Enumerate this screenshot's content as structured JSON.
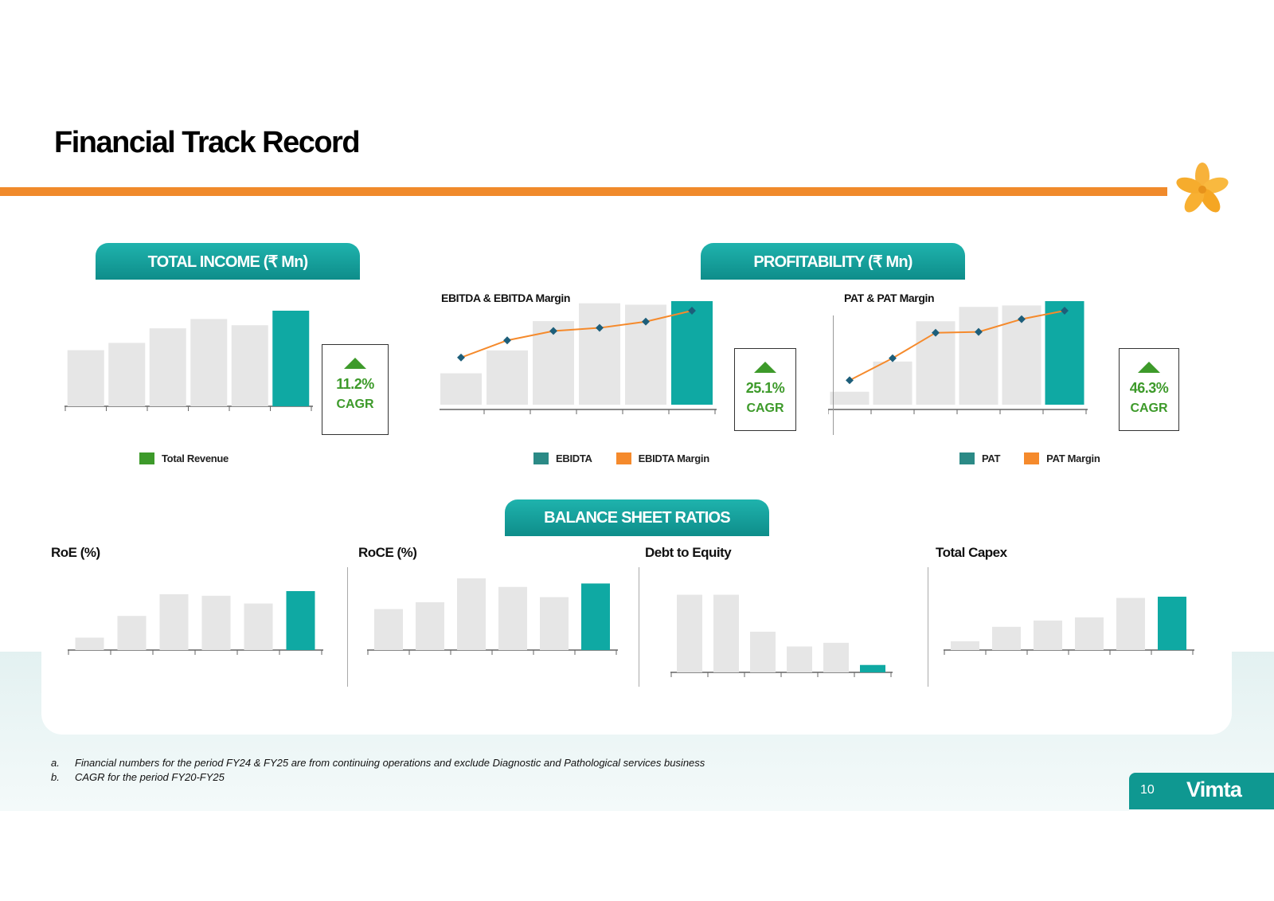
{
  "page": {
    "title": "Financial Track Record",
    "page_number": "10",
    "brand": "Vimta",
    "colors": {
      "accent": "#f08a2b",
      "teal": "#0fa9a3",
      "grey_bar": "#e6e6e6",
      "cagr_green": "#3d9a2a"
    }
  },
  "sections": {
    "total_income": "TOTAL INCOME (₹ Mn)",
    "profitability": "PROFITABILITY (₹ Mn)",
    "balance_sheet": "BALANCE SHEET RATIOS",
    "ebitda_title": "EBITDA & EBITDA Margin",
    "pat_title": "PAT & PAT Margin",
    "roe_title": "RoE (%)",
    "roce_title": "RoCE (%)",
    "de_title": "Debt to Equity",
    "capex_title": "Total Capex"
  },
  "cagr": {
    "total_income": {
      "value": "11.2%",
      "label": "CAGR"
    },
    "ebitda": {
      "value": "25.1%",
      "label": "CAGR"
    },
    "pat": {
      "value": "46.3%",
      "label": "CAGR"
    }
  },
  "legends": {
    "total_revenue": "Total Revenue",
    "ebitda": "EBIDTA",
    "ebitda_margin": "EBIDTA Margin",
    "pat": "PAT",
    "pat_margin": "PAT Margin"
  },
  "footnotes": [
    {
      "key": "a.",
      "text": "Financial numbers for the period FY24 & FY25 are from continuing operations and exclude Diagnostic and Pathological services business"
    },
    {
      "key": "b.",
      "text": "CAGR for the period FY20-FY25"
    }
  ],
  "chart_data": [
    {
      "id": "total-income",
      "type": "bar",
      "categories": [
        "",
        "",
        "",
        "",
        "",
        ""
      ],
      "series": [
        {
          "name": "Total Revenue",
          "values": [
            2160,
            2440,
            3000,
            3360,
            3120,
            3680
          ]
        }
      ],
      "ylim": [
        0,
        3680
      ],
      "highlight_last": true
    },
    {
      "id": "ebitda",
      "type": "bar+line",
      "categories": [
        "",
        "",
        "",
        "",
        "",
        ""
      ],
      "series": [
        {
          "name": "EBIDTA",
          "values": [
            440,
            760,
            1170,
            1420,
            1400,
            1450
          ]
        },
        {
          "name": "EBIDTA Margin",
          "values": [
            20,
            31,
            37,
            39,
            43,
            50
          ]
        }
      ],
      "ylim": [
        0,
        1450
      ],
      "highlight_last": true
    },
    {
      "id": "pat",
      "type": "bar+line",
      "categories": [
        "",
        "",
        "",
        "",
        "",
        ""
      ],
      "series": [
        {
          "name": "PAT",
          "values": [
            90,
            300,
            580,
            680,
            690,
            720
          ]
        },
        {
          "name": "PAT Margin",
          "values": [
            5,
            18,
            33,
            33.5,
            41,
            46
          ]
        }
      ],
      "ylim": [
        0,
        720
      ],
      "highlight_last": true
    },
    {
      "id": "roe",
      "type": "bar",
      "categories": [
        "",
        "",
        "",
        "",
        "",
        ""
      ],
      "series": [
        {
          "values": [
            4,
            11,
            18,
            17.5,
            15,
            19
          ]
        }
      ],
      "ylim": [
        0,
        19
      ],
      "highlight_last": true
    },
    {
      "id": "roce",
      "type": "bar",
      "categories": [
        "",
        "",
        "",
        "",
        "",
        ""
      ],
      "series": [
        {
          "values": [
            12,
            14,
            21,
            18.5,
            15.5,
            19.5
          ]
        }
      ],
      "ylim": [
        0,
        21
      ],
      "highlight_last": true
    },
    {
      "id": "debt-equity",
      "type": "bar",
      "categories": [
        "",
        "",
        "",
        "",
        "",
        ""
      ],
      "series": [
        {
          "values": [
            0.21,
            0.21,
            0.11,
            0.07,
            0.08,
            0.02
          ]
        }
      ],
      "ylim": [
        0,
        0.25
      ],
      "highlight_last": true
    },
    {
      "id": "capex",
      "type": "bar",
      "categories": [
        "",
        "",
        "",
        "",
        "",
        ""
      ],
      "series": [
        {
          "values": [
            140,
            370,
            470,
            520,
            830,
            850
          ]
        }
      ],
      "ylim": [
        0,
        850
      ],
      "highlight_last": true
    }
  ]
}
